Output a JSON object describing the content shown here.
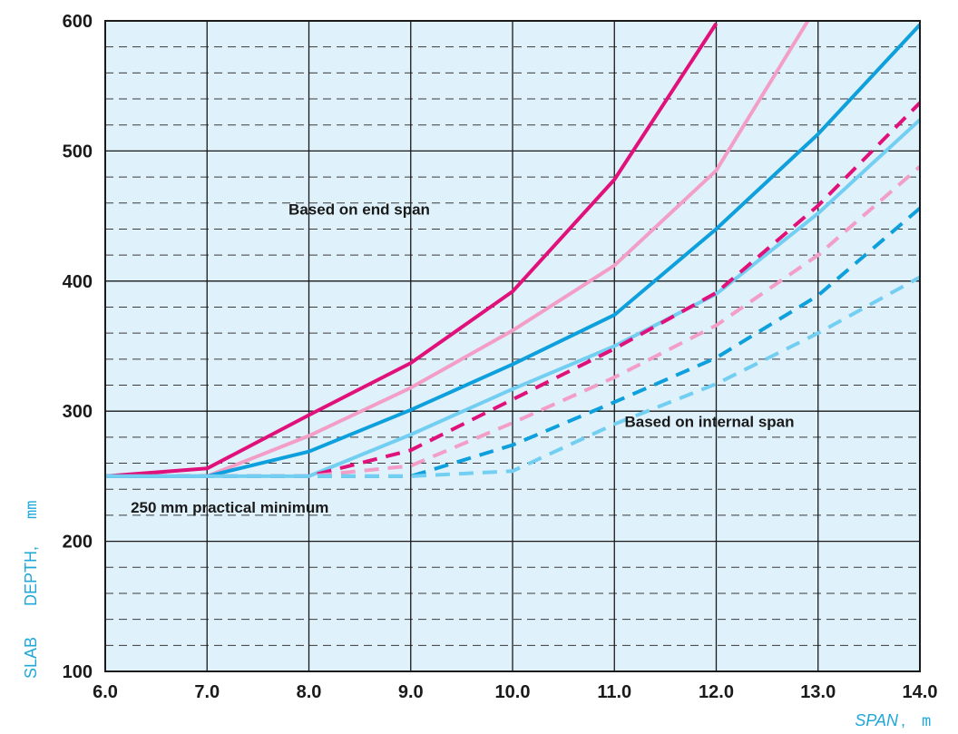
{
  "chart_data": {
    "type": "line",
    "xlabel": "SPAN",
    "xunit": "m",
    "ylabel_words": [
      "SLAB",
      "DEPTH,"
    ],
    "yunit": "mm",
    "xlim": [
      6.0,
      14.0
    ],
    "ylim": [
      100,
      600
    ],
    "x_ticks": [
      "6.0",
      "7.0",
      "8.0",
      "9.0",
      "10.0",
      "11.0",
      "12.0",
      "13.0",
      "14.0"
    ],
    "y_ticks": [
      "100",
      "200",
      "300",
      "400",
      "500",
      "600"
    ],
    "grid": true,
    "minor_gridlines_dashed": true,
    "background_color": "#dff1fb",
    "annotations": [
      {
        "text": "Based on end span",
        "x": 7.8,
        "y": 451
      },
      {
        "text": "Based on internal span",
        "x": 11.1,
        "y": 288
      },
      {
        "text": "250 mm practical minimum",
        "x": 6.25,
        "y": 222
      }
    ],
    "series": [
      {
        "style": "solid",
        "color": "#e0117a",
        "x": [
          6,
          7,
          8,
          9,
          10,
          11,
          12
        ],
        "y": [
          250,
          256,
          297,
          337,
          392,
          478,
          598
        ]
      },
      {
        "style": "solid",
        "color": "#f29ec7",
        "x": [
          6,
          7,
          8,
          9,
          10,
          11,
          12,
          12.9
        ],
        "y": [
          250,
          250,
          281,
          318,
          362,
          412,
          485,
          600
        ]
      },
      {
        "style": "solid",
        "color": "#0da0dc",
        "x": [
          6,
          7,
          8,
          9,
          10,
          11,
          12,
          13,
          14
        ],
        "y": [
          250,
          250,
          269,
          301,
          336,
          374,
          440,
          513,
          597
        ]
      },
      {
        "style": "solid",
        "color": "#73cff2",
        "x": [
          6,
          7,
          8,
          9,
          10,
          11,
          12,
          13,
          14
        ],
        "y": [
          250,
          250,
          250,
          282,
          317,
          350,
          390,
          452,
          524
        ]
      },
      {
        "style": "dashed",
        "color": "#e0117a",
        "x": [
          6,
          7,
          8,
          9,
          10,
          11,
          12,
          13,
          14
        ],
        "y": [
          250,
          250,
          250,
          270,
          309,
          348,
          391,
          458,
          537
        ]
      },
      {
        "style": "dashed",
        "color": "#f29ec7",
        "x": [
          6,
          7,
          8,
          9,
          10,
          11,
          12,
          13,
          14
        ],
        "y": [
          250,
          250,
          250,
          258,
          291,
          326,
          366,
          420,
          488
        ]
      },
      {
        "style": "dashed",
        "color": "#0da0dc",
        "x": [
          6,
          7,
          8,
          9,
          10,
          11,
          12,
          13,
          14
        ],
        "y": [
          250,
          250,
          250,
          250,
          274,
          307,
          341,
          389,
          456
        ]
      },
      {
        "style": "dashed",
        "color": "#73cff2",
        "x": [
          6,
          7,
          8,
          9,
          10,
          11,
          12,
          13,
          14
        ],
        "y": [
          250,
          250,
          250,
          250,
          254,
          290,
          321,
          360,
          403
        ]
      }
    ]
  }
}
